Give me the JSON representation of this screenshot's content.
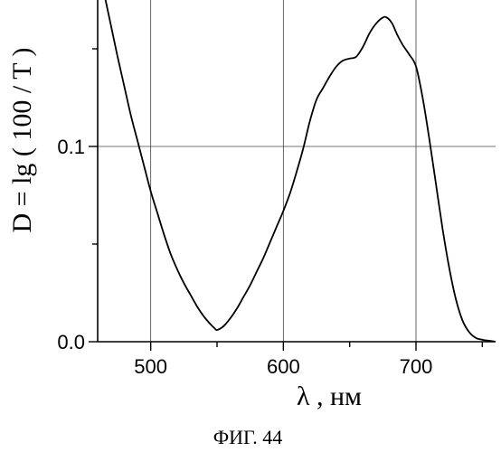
{
  "chart_data": {
    "type": "line",
    "title": "",
    "xlabel": "λ , нм",
    "ylabel": "D = lg ( 100 / T )",
    "xlim": [
      460,
      760
    ],
    "ylim": [
      0.0,
      0.175
    ],
    "grid": true,
    "x_ticks": [
      500,
      600,
      700
    ],
    "x_tick_labels": [
      "500",
      "600",
      "700"
    ],
    "y_ticks": [
      0.0,
      0.1
    ],
    "y_tick_labels": [
      "0.0",
      "0.1"
    ],
    "series": [
      {
        "x": [
          465,
          470,
          475,
          480,
          485,
          490,
          495,
          500,
          505,
          510,
          515,
          520,
          525,
          530,
          535,
          540,
          545,
          548,
          550,
          555,
          560,
          565,
          570,
          575,
          580,
          585,
          590,
          595,
          600,
          605,
          610,
          615,
          620,
          625,
          630,
          635,
          640,
          645,
          650,
          655,
          660,
          665,
          670,
          675,
          678,
          682,
          686,
          690,
          695,
          700,
          705,
          710,
          715,
          720,
          725,
          730,
          735,
          740,
          745,
          750,
          755,
          760
        ],
        "y": [
          0.178,
          0.162,
          0.146,
          0.131,
          0.116,
          0.103,
          0.09,
          0.077,
          0.066,
          0.055,
          0.045,
          0.037,
          0.03,
          0.024,
          0.018,
          0.013,
          0.009,
          0.007,
          0.006,
          0.008,
          0.012,
          0.017,
          0.023,
          0.029,
          0.036,
          0.043,
          0.051,
          0.059,
          0.067,
          0.076,
          0.087,
          0.099,
          0.113,
          0.124,
          0.13,
          0.136,
          0.141,
          0.144,
          0.145,
          0.146,
          0.151,
          0.158,
          0.163,
          0.166,
          0.166,
          0.163,
          0.157,
          0.152,
          0.147,
          0.141,
          0.125,
          0.104,
          0.081,
          0.058,
          0.038,
          0.022,
          0.011,
          0.005,
          0.002,
          0.001,
          0.0005,
          0.0
        ]
      }
    ]
  },
  "caption": "ФИГ. 44"
}
